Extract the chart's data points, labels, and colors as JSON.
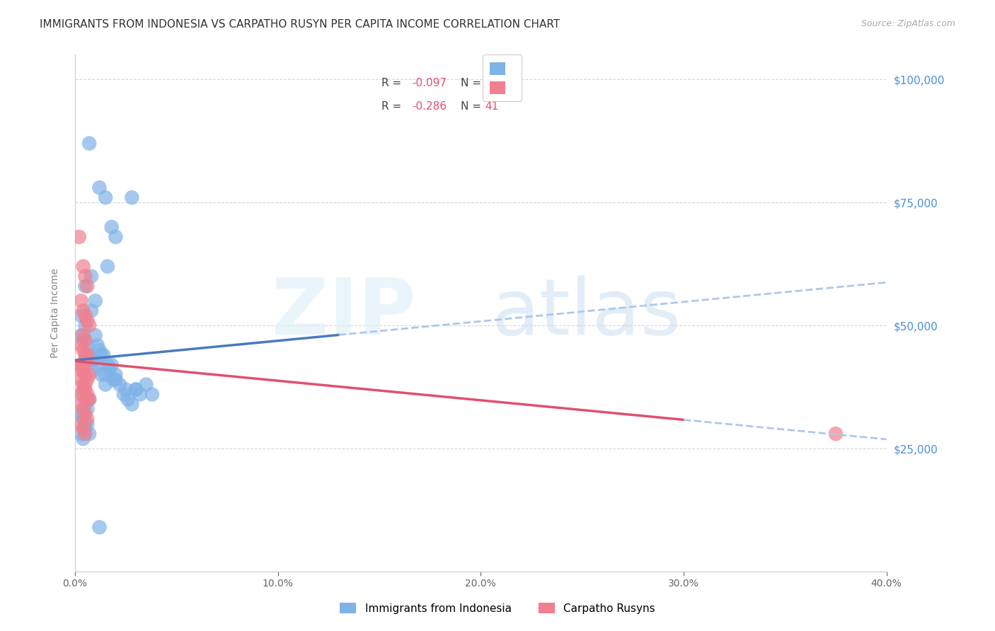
{
  "title": "IMMIGRANTS FROM INDONESIA VS CARPATHO RUSYN PER CAPITA INCOME CORRELATION CHART",
  "source": "Source: ZipAtlas.com",
  "ylabel": "Per Capita Income",
  "xlim": [
    0.0,
    0.4
  ],
  "ylim": [
    0,
    105000
  ],
  "yticks": [
    0,
    25000,
    50000,
    75000,
    100000
  ],
  "ytick_labels": [
    "",
    "$25,000",
    "$50,000",
    "$75,000",
    "$100,000"
  ],
  "xticks": [
    0.0,
    0.1,
    0.2,
    0.3,
    0.4
  ],
  "xtick_labels": [
    "0.0%",
    "10.0%",
    "20.0%",
    "30.0%",
    "40.0%"
  ],
  "indonesia_x": [
    0.007,
    0.012,
    0.028,
    0.015,
    0.018,
    0.02,
    0.012,
    0.005,
    0.008,
    0.016,
    0.01,
    0.008,
    0.005,
    0.003,
    0.003,
    0.004,
    0.006,
    0.007,
    0.009,
    0.011,
    0.013,
    0.015,
    0.017,
    0.019,
    0.004,
    0.005,
    0.006,
    0.007,
    0.003,
    0.004,
    0.005,
    0.018,
    0.02,
    0.022,
    0.024,
    0.026,
    0.028,
    0.03,
    0.032,
    0.035,
    0.038,
    0.03,
    0.012,
    0.014,
    0.016,
    0.003,
    0.004,
    0.005,
    0.006,
    0.007,
    0.015,
    0.01,
    0.011,
    0.013,
    0.02,
    0.025,
    0.008,
    0.009,
    0.004
  ],
  "indonesia_y": [
    87000,
    78000,
    76000,
    76000,
    70000,
    68000,
    9000,
    58000,
    60000,
    62000,
    55000,
    53000,
    50000,
    48000,
    52000,
    47000,
    46000,
    44000,
    43000,
    42000,
    40000,
    38000,
    41000,
    39000,
    36000,
    34000,
    33000,
    35000,
    32000,
    31000,
    30000,
    42000,
    40000,
    38000,
    36000,
    35000,
    34000,
    37000,
    36000,
    38000,
    36000,
    37000,
    45000,
    44000,
    42000,
    28000,
    27000,
    29000,
    30000,
    28000,
    40000,
    48000,
    46000,
    44000,
    39000,
    37000,
    43000,
    41000,
    32000
  ],
  "rusyn_x": [
    0.002,
    0.004,
    0.005,
    0.006,
    0.003,
    0.004,
    0.005,
    0.006,
    0.007,
    0.004,
    0.005,
    0.003,
    0.004,
    0.005,
    0.006,
    0.003,
    0.004,
    0.005,
    0.003,
    0.004,
    0.005,
    0.006,
    0.007,
    0.003,
    0.004,
    0.005,
    0.006,
    0.003,
    0.004,
    0.005,
    0.006,
    0.003,
    0.004,
    0.005,
    0.006,
    0.007,
    0.003,
    0.004,
    0.005,
    0.375,
    0.006
  ],
  "rusyn_y": [
    68000,
    62000,
    60000,
    58000,
    55000,
    53000,
    52000,
    51000,
    50000,
    48000,
    47000,
    46000,
    45000,
    44000,
    43000,
    42000,
    41000,
    40000,
    39000,
    38000,
    37000,
    36000,
    35000,
    34000,
    33000,
    32000,
    31000,
    30000,
    29000,
    28000,
    35000,
    36000,
    37000,
    38000,
    39000,
    40000,
    41000,
    42000,
    43000,
    28000,
    44000
  ],
  "background_color": "#ffffff",
  "grid_color": "#cccccc",
  "indonesia_dot_color": "#7fb3e8",
  "rusyn_dot_color": "#f08090",
  "indonesia_line_color": "#4a7abf",
  "rusyn_line_color": "#e05070",
  "trend_dash_color": "#b0c8e8",
  "title_color": "#333333",
  "right_label_color": "#4a90d9",
  "r_n_color": "#e05070",
  "title_fontsize": 11,
  "axis_label_fontsize": 10,
  "tick_fontsize": 10,
  "legend_fontsize": 11
}
